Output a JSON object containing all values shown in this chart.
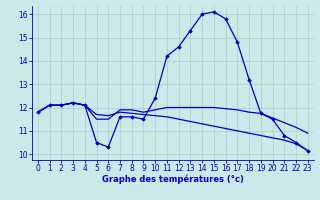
{
  "xlabel": "Graphe des températures (°c)",
  "background_color": "#cce8e8",
  "grid_color": "#aad4d4",
  "line_color": "#0000cc",
  "xlim": [
    -0.5,
    23.5
  ],
  "ylim": [
    9.75,
    16.35
  ],
  "x_ticks": [
    0,
    1,
    2,
    3,
    4,
    5,
    6,
    7,
    8,
    9,
    10,
    11,
    12,
    13,
    14,
    15,
    16,
    17,
    18,
    19,
    20,
    21,
    22,
    23
  ],
  "y_ticks": [
    10,
    11,
    12,
    13,
    14,
    15,
    16
  ],
  "line1_x": [
    0,
    1,
    2,
    3,
    4,
    5,
    6,
    7,
    8,
    9,
    10,
    11,
    12,
    13,
    14,
    15,
    16,
    17,
    18,
    19,
    20,
    21,
    22,
    23
  ],
  "line1_y": [
    11.8,
    12.1,
    12.1,
    12.2,
    12.1,
    10.5,
    10.3,
    11.6,
    11.6,
    11.5,
    12.4,
    14.2,
    14.6,
    15.3,
    16.0,
    16.1,
    15.8,
    14.8,
    13.2,
    11.75,
    11.5,
    10.8,
    10.5,
    10.15
  ],
  "line2_x": [
    0,
    1,
    2,
    3,
    4,
    5,
    6,
    7,
    8,
    9,
    10,
    11,
    12,
    13,
    14,
    15,
    16,
    17,
    18,
    19,
    20,
    21,
    22,
    23
  ],
  "line2_y": [
    11.8,
    12.1,
    12.1,
    12.2,
    12.1,
    11.5,
    11.5,
    11.9,
    11.9,
    11.8,
    11.9,
    12.0,
    12.0,
    12.0,
    12.0,
    12.0,
    11.95,
    11.9,
    11.8,
    11.75,
    11.55,
    11.35,
    11.15,
    10.9
  ],
  "line3_x": [
    0,
    1,
    2,
    3,
    4,
    5,
    6,
    7,
    8,
    9,
    10,
    11,
    12,
    13,
    14,
    15,
    16,
    17,
    18,
    19,
    20,
    21,
    22,
    23
  ],
  "line3_y": [
    11.8,
    12.1,
    12.1,
    12.2,
    12.1,
    11.7,
    11.65,
    11.8,
    11.75,
    11.7,
    11.65,
    11.6,
    11.5,
    11.4,
    11.3,
    11.2,
    11.1,
    11.0,
    10.9,
    10.8,
    10.7,
    10.6,
    10.45,
    10.15
  ],
  "marker": "D",
  "markersize": 1.8,
  "linewidth": 0.9,
  "tick_fontsize": 5.5,
  "xlabel_fontsize": 6.0
}
